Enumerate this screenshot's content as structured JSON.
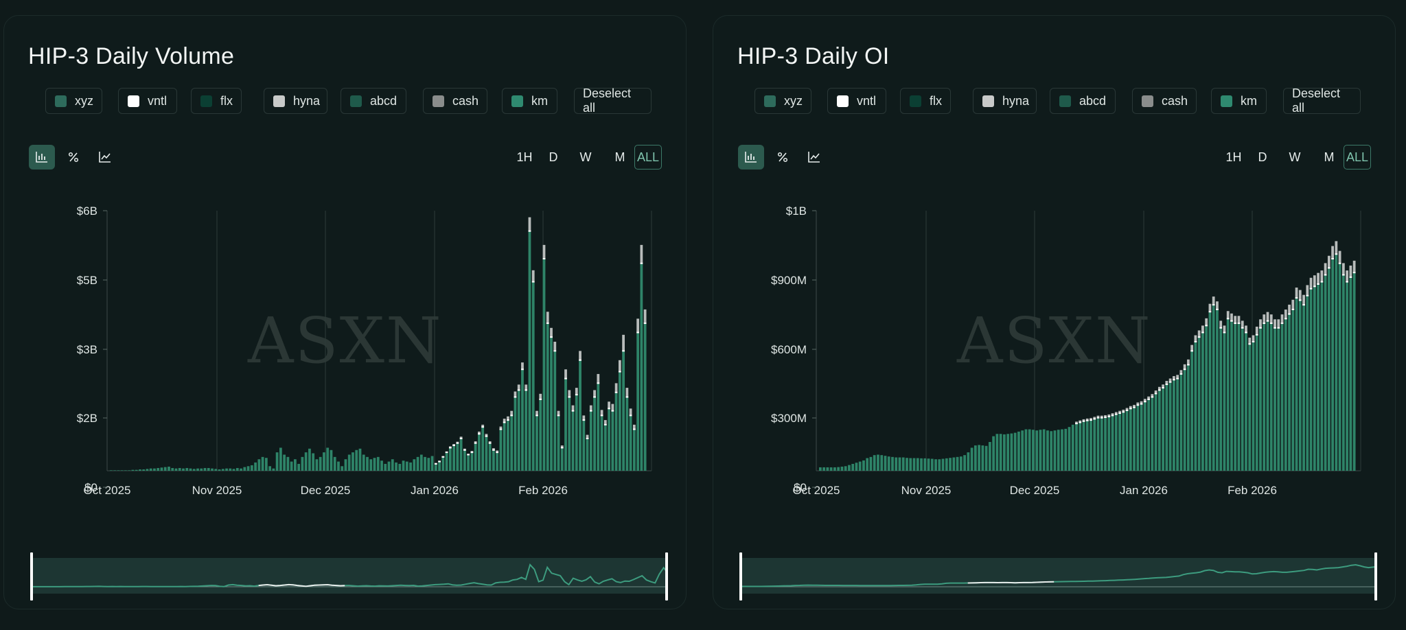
{
  "colors": {
    "xyz": "#2e6b5c",
    "vntl": "#ffffff",
    "flx": "#0b3f33",
    "hyna": "#c8cac9",
    "abcd": "#1f5a4b",
    "cash": "#8a8d8c",
    "km": "#2f8a70",
    "bar_main": "#2e8468",
    "bar_gray": "#b8bcbb"
  },
  "legend_items": [
    "xyz",
    "vntl",
    "flx",
    "hyna",
    "abcd",
    "cash",
    "km"
  ],
  "deselect_label": "Deselect all",
  "timeframes": [
    "1H",
    "D",
    "W",
    "M",
    "ALL"
  ],
  "active_timeframe": "ALL",
  "toolbar_icons": [
    "bar-chart-icon",
    "percent-icon",
    "line-chart-icon"
  ],
  "watermark": "ASXN",
  "charts": {
    "volume": {
      "title": "HIP-3 Daily Volume",
      "y_ticks": [
        "$0",
        "$2B",
        "$3B",
        "$5B",
        "$6B"
      ],
      "x_ticks": [
        "Oct 2025",
        "Nov 2025",
        "Dec 2025",
        "Jan 2026",
        "Feb 2026"
      ]
    },
    "oi": {
      "title": "HIP-3 Daily OI",
      "y_ticks": [
        "$0",
        "$300M",
        "$600M",
        "$900M",
        "$1B"
      ],
      "x_ticks": [
        "Oct 2025",
        "Nov 2025",
        "Dec 2025",
        "Jan 2026",
        "Feb 2026"
      ]
    }
  },
  "chart_data": [
    {
      "type": "bar",
      "title": "HIP-3 Daily Volume",
      "ylim": [
        0,
        6000000000
      ],
      "y_tick_values": [
        0,
        1500000000,
        3000000000,
        4500000000,
        6000000000
      ],
      "x_ticks": [
        "Oct 2025",
        "Nov 2025",
        "Dec 2025",
        "Jan 2026",
        "Feb 2026"
      ],
      "x_start": "2025-10-01",
      "unit": "USD (billions)",
      "values_billions": [
        0.01,
        0.01,
        0.01,
        0.01,
        0.01,
        0.01,
        0.02,
        0.02,
        0.03,
        0.03,
        0.04,
        0.05,
        0.05,
        0.06,
        0.07,
        0.08,
        0.09,
        0.06,
        0.05,
        0.06,
        0.05,
        0.06,
        0.05,
        0.04,
        0.05,
        0.05,
        0.06,
        0.06,
        0.05,
        0.04,
        0.03,
        0.04,
        0.05,
        0.05,
        0.04,
        0.06,
        0.05,
        0.08,
        0.1,
        0.12,
        0.18,
        0.25,
        0.3,
        0.28,
        0.1,
        0.05,
        0.4,
        0.5,
        0.35,
        0.3,
        0.2,
        0.25,
        0.15,
        0.3,
        0.4,
        0.48,
        0.38,
        0.25,
        0.3,
        0.4,
        0.5,
        0.45,
        0.3,
        0.2,
        0.1,
        0.25,
        0.35,
        0.4,
        0.45,
        0.48,
        0.35,
        0.3,
        0.25,
        0.28,
        0.3,
        0.22,
        0.15,
        0.2,
        0.25,
        0.18,
        0.15,
        0.22,
        0.2,
        0.18,
        0.25,
        0.3,
        0.35,
        0.3,
        0.28,
        0.32,
        0.15,
        0.2,
        0.3,
        0.4,
        0.5,
        0.55,
        0.6,
        0.7,
        0.45,
        0.35,
        0.4,
        0.6,
        0.8,
        0.95,
        0.75,
        0.6,
        0.45,
        0.4,
        0.9,
        1.05,
        1.1,
        1.2,
        1.6,
        1.75,
        2.2,
        1.75,
        5.2,
        4.1,
        1.2,
        1.55,
        4.6,
        3.2,
        2.9,
        2.6,
        1.2,
        0.5,
        2.0,
        1.6,
        1.3,
        1.65,
        2.4,
        1.1,
        0.7,
        1.3,
        1.6,
        1.9,
        1.2,
        1.0,
        1.35,
        1.3,
        1.7,
        2.15,
        2.6,
        1.6,
        1.2,
        0.9,
        3.0,
        4.5,
        3.2
      ],
      "gray_top_billions": [
        0,
        0,
        0,
        0,
        0,
        0,
        0,
        0,
        0,
        0,
        0,
        0,
        0,
        0,
        0,
        0,
        0,
        0,
        0,
        0,
        0,
        0,
        0,
        0,
        0,
        0,
        0,
        0,
        0,
        0,
        0,
        0,
        0,
        0,
        0,
        0,
        0,
        0,
        0,
        0,
        0,
        0,
        0,
        0,
        0,
        0,
        0,
        0,
        0,
        0,
        0,
        0,
        0,
        0,
        0,
        0,
        0,
        0,
        0,
        0,
        0,
        0,
        0,
        0,
        0,
        0,
        0,
        0,
        0,
        0,
        0,
        0,
        0,
        0,
        0,
        0,
        0,
        0,
        0,
        0,
        0,
        0,
        0,
        0,
        0,
        0,
        0,
        0,
        0,
        0,
        0.02,
        0.02,
        0.02,
        0.02,
        0.03,
        0.03,
        0.03,
        0.04,
        0.03,
        0.02,
        0.03,
        0.04,
        0.05,
        0.05,
        0.05,
        0.04,
        0.04,
        0.04,
        0.06,
        0.08,
        0.08,
        0.1,
        0.12,
        0.12,
        0.15,
        0.12,
        0.3,
        0.25,
        0.1,
        0.12,
        0.3,
        0.25,
        0.2,
        0.2,
        0.1,
        0.05,
        0.2,
        0.15,
        0.12,
        0.15,
        0.2,
        0.1,
        0.08,
        0.12,
        0.15,
        0.2,
        0.12,
        0.1,
        0.15,
        0.15,
        0.2,
        0.25,
        0.35,
        0.2,
        0.15,
        0.1,
        0.3,
        0.4,
        0.3
      ]
    },
    {
      "type": "bar",
      "title": "HIP-3 Daily OI",
      "ylim": [
        0,
        1200000000
      ],
      "y_tick_values": [
        0,
        300000000,
        600000000,
        900000000,
        1200000000
      ],
      "x_ticks": [
        "Oct 2025",
        "Nov 2025",
        "Dec 2025",
        "Jan 2026",
        "Feb 2026"
      ],
      "x_start": "2025-10-01",
      "unit": "USD (millions)",
      "values_millions": [
        15,
        15,
        15,
        15,
        15,
        16,
        18,
        20,
        25,
        30,
        35,
        40,
        45,
        55,
        60,
        68,
        70,
        68,
        65,
        62,
        60,
        58,
        58,
        58,
        56,
        55,
        55,
        55,
        54,
        54,
        53,
        52,
        50,
        50,
        52,
        54,
        56,
        58,
        60,
        62,
        68,
        80,
        100,
        110,
        112,
        110,
        108,
        125,
        150,
        160,
        160,
        158,
        160,
        162,
        165,
        170,
        175,
        180,
        180,
        178,
        175,
        178,
        180,
        175,
        172,
        175,
        178,
        180,
        182,
        190,
        200,
        205,
        210,
        215,
        218,
        220,
        225,
        230,
        230,
        232,
        235,
        240,
        245,
        250,
        255,
        262,
        270,
        275,
        285,
        290,
        300,
        310,
        320,
        335,
        350,
        360,
        375,
        385,
        395,
        400,
        420,
        440,
        460,
        520,
        560,
        580,
        600,
        630,
        690,
        720,
        700,
        620,
        600,
        660,
        650,
        640,
        640,
        620,
        600,
        550,
        560,
        590,
        620,
        640,
        650,
        640,
        620,
        620,
        640,
        660,
        680,
        700,
        750,
        740,
        720,
        760,
        790,
        800,
        810,
        820,
        850,
        880,
        920,
        940,
        900,
        850,
        820,
        840,
        860
      ]
    }
  ]
}
